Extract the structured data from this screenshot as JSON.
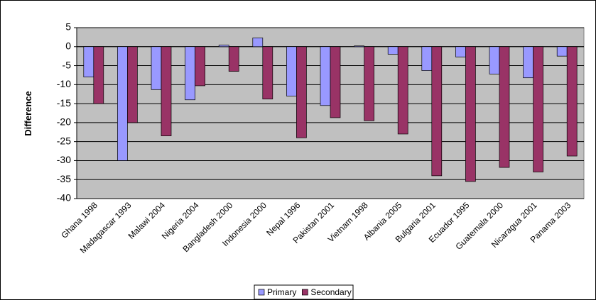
{
  "chart_data": {
    "type": "bar",
    "y_label": "Difference",
    "categories": [
      "Ghana 1998",
      "Madagascar 1993",
      "Malawi 2004",
      "Nigeria 2004",
      "Bangladesh 2000",
      "Indonesia 2000",
      "Nepal 1996",
      "Pakistan 2001",
      "Vietnam 1998",
      "Albania 2005",
      "Bulgaria 2001",
      "Ecuador 1995",
      "Guatemala 2000",
      "Nicaragua 2001",
      "Panama 2003"
    ],
    "series": [
      {
        "name": "Primary",
        "color": "#9999ff",
        "values": [
          -8,
          -30,
          -11.3,
          -14,
          0.4,
          2.3,
          -13,
          -15.5,
          0.2,
          -2,
          -6.3,
          -2.7,
          -7.2,
          -8.2,
          -2.5
        ]
      },
      {
        "name": "Secondary",
        "color": "#993366",
        "values": [
          -15,
          -20,
          -23.5,
          -10.3,
          -6.5,
          -13.8,
          -24,
          -18.7,
          -19.5,
          -23,
          -34,
          -35.5,
          -31.8,
          -33,
          -28.8
        ]
      }
    ],
    "ylim": [
      -40,
      5
    ],
    "yticks": [
      5,
      0,
      -5,
      -10,
      -15,
      -20,
      -25,
      -30,
      -35,
      -40
    ],
    "grid": true,
    "legend": "bottom"
  }
}
